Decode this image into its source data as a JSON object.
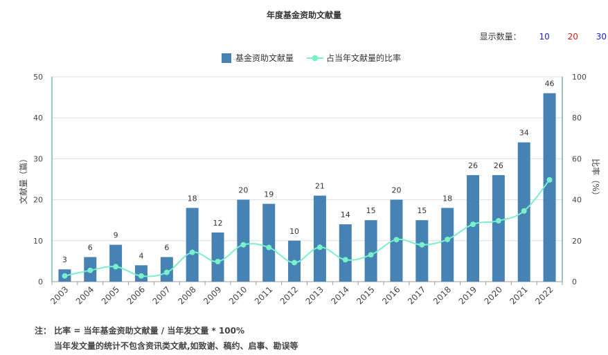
{
  "page_title": "年度基金资助文献量",
  "display_count": {
    "label": "显示数量：",
    "options": [
      {
        "label": "10",
        "color": "#1a1adb"
      },
      {
        "label": "20",
        "color": "#d61a1a"
      },
      {
        "label": "30",
        "color": "#1a1adb"
      }
    ]
  },
  "notes": {
    "line1": "注： 比率 = 当年基金资助文献量 / 当年发文量 * 100%",
    "line2": "当年发文量的统计不包含资讯类文献,如致谢、稿约、启事、勘误等"
  },
  "colors": {
    "bar": "#4682b4",
    "line": "#78f0c8",
    "left_axis": "#2e9b8a",
    "right_axis": "#2e8a7a"
  },
  "chart_data": {
    "type": "bar",
    "title": "年度基金资助文献量",
    "categories": [
      "2003",
      "2004",
      "2005",
      "2006",
      "2007",
      "2008",
      "2009",
      "2010",
      "2011",
      "2012",
      "2013",
      "2014",
      "2015",
      "2016",
      "2017",
      "2018",
      "2019",
      "2020",
      "2021",
      "2022"
    ],
    "series": [
      {
        "name": "基金资助文献量",
        "type": "bar",
        "axis": "left",
        "values": [
          3,
          6,
          9,
          4,
          6,
          18,
          12,
          20,
          19,
          10,
          21,
          14,
          15,
          20,
          15,
          18,
          26,
          26,
          34,
          46
        ]
      },
      {
        "name": "占当年文献量的比率",
        "type": "line",
        "axis": "right",
        "values": [
          2.8,
          5.5,
          7.3,
          2.8,
          4.5,
          14.3,
          9.8,
          18,
          16.7,
          9.3,
          16.8,
          10.7,
          13.1,
          20.5,
          18,
          20.6,
          28,
          29.7,
          34.5,
          49.7
        ]
      }
    ],
    "ylabel": "文献量（篇）",
    "ylim": [
      0,
      50
    ],
    "yticks": [
      0,
      10,
      20,
      30,
      40,
      50
    ],
    "y2label": "比率（%）",
    "y2lim": [
      0,
      100
    ],
    "y2ticks": [
      0,
      20,
      40,
      60,
      80,
      100
    ],
    "legend_position": "top-center",
    "grid": true
  }
}
